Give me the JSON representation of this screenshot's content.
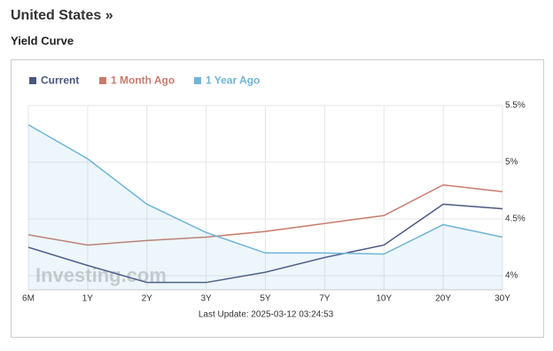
{
  "header": {
    "title": "United States »",
    "subtitle": "Yield Curve"
  },
  "chart_data": {
    "type": "line",
    "categories": [
      "6M",
      "1Y",
      "2Y",
      "3Y",
      "5Y",
      "7Y",
      "10Y",
      "20Y",
      "30Y"
    ],
    "series": [
      {
        "name": "Current",
        "color": "#4a5783",
        "values": [
          4.25,
          4.09,
          3.94,
          3.94,
          4.03,
          4.16,
          4.27,
          4.63,
          4.59
        ]
      },
      {
        "name": "1 Month Ago",
        "color": "#c97b6c",
        "values": [
          4.36,
          4.27,
          4.31,
          4.34,
          4.39,
          4.46,
          4.53,
          4.8,
          4.74
        ]
      },
      {
        "name": "1 Year Ago",
        "color": "#6fb5d6",
        "values": [
          5.33,
          5.03,
          4.63,
          4.38,
          4.2,
          4.2,
          4.19,
          4.45,
          4.34
        ],
        "area": true
      }
    ],
    "ylim": [
      3.875,
      5.5
    ],
    "yticks": [
      {
        "value": 4,
        "label": "4%"
      },
      {
        "value": 4.5,
        "label": "4.5%"
      },
      {
        "value": 5,
        "label": "5%"
      },
      {
        "value": 5.5,
        "label": "5.5%"
      }
    ],
    "grid": true,
    "watermark": "Investing.com",
    "footer": "Last Update: 2025-03-12 03:24:53"
  }
}
